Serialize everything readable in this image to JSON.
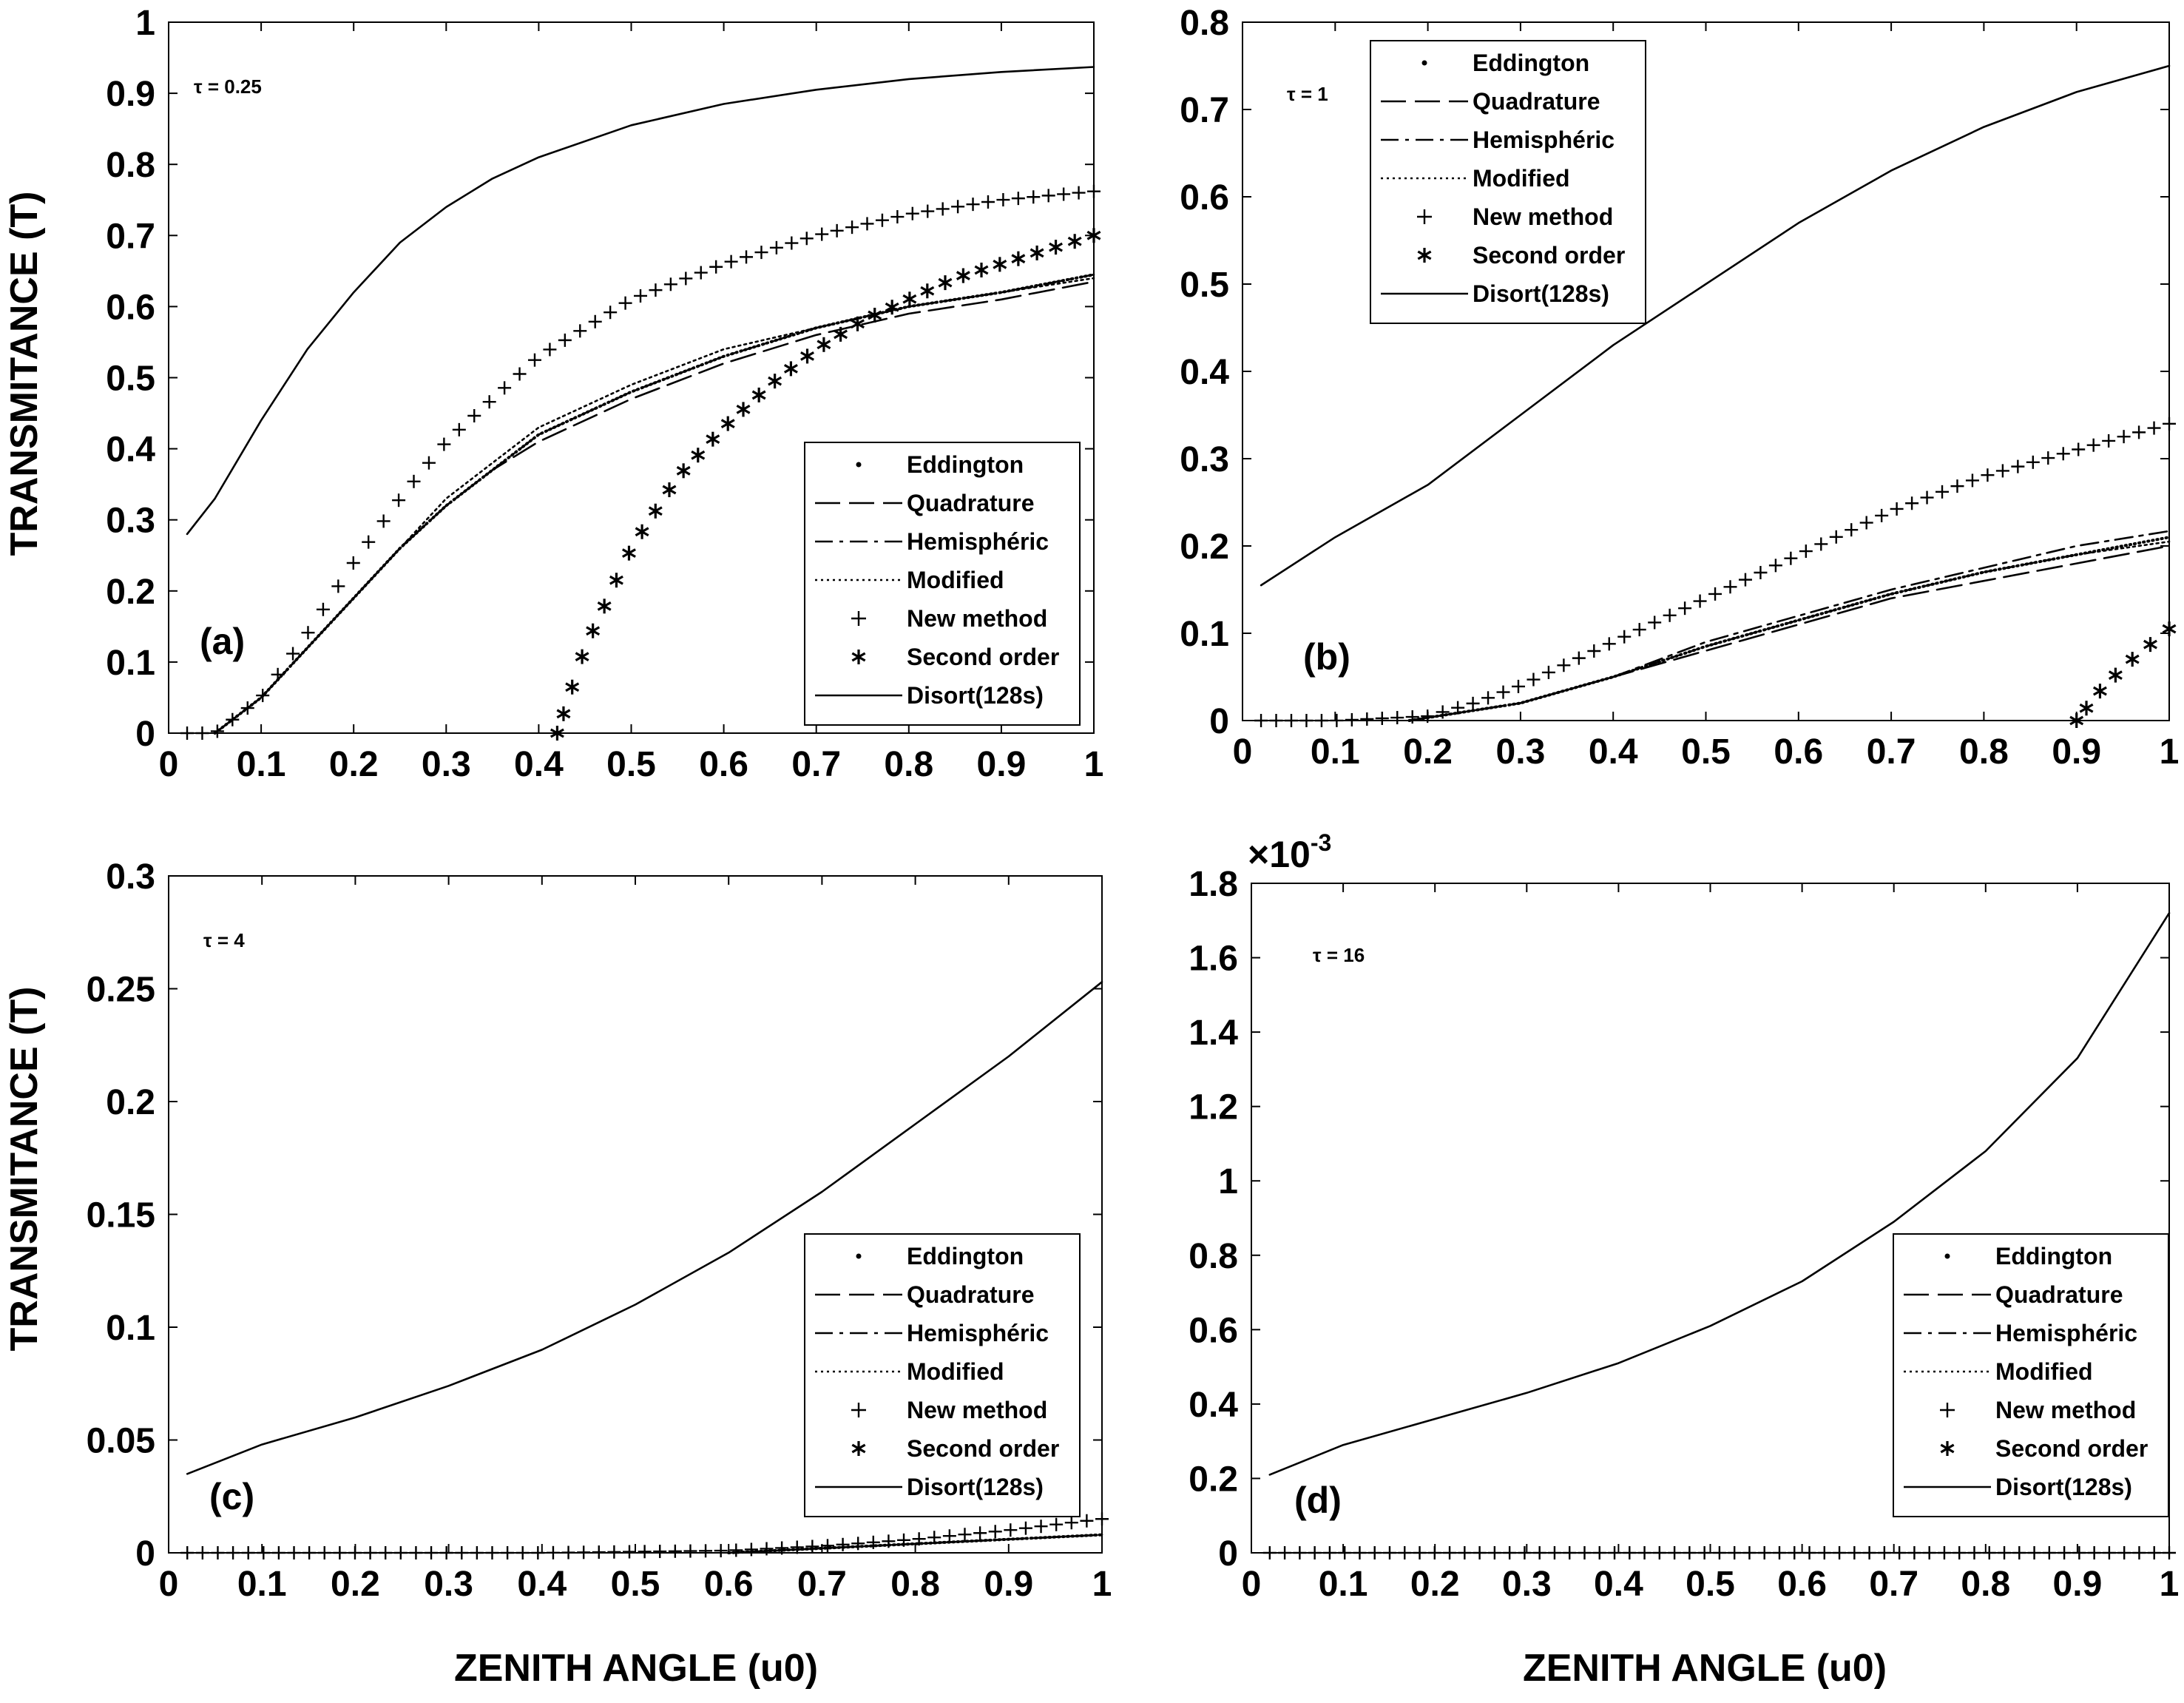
{
  "figure": {
    "xlabel": "ZENITH ANGLE (u0)",
    "ylabel": "TRANSMITANCE (T)"
  },
  "legend": {
    "entries": [
      {
        "label": "Eddington",
        "style": "dot"
      },
      {
        "label": "Quadrature",
        "style": "dashed"
      },
      {
        "label": "Hemisphéric",
        "style": "dashdot"
      },
      {
        "label": "Modified",
        "style": "dotted"
      },
      {
        "label": "New method",
        "style": "plus"
      },
      {
        "label": "Second order",
        "style": "star"
      },
      {
        "label": "Disort(128s)",
        "style": "solid"
      }
    ]
  },
  "chart_data": [
    {
      "type": "line",
      "panel": "(a)",
      "annotation": "τ = 0.25",
      "xlabel": "ZENITH ANGLE (u0)",
      "ylabel": "TRANSMITANCE (T)",
      "xlim": [
        0,
        1
      ],
      "ylim": [
        0,
        1
      ],
      "xticks": [
        "0",
        "0.1",
        "0.2",
        "0.3",
        "0.4",
        "0.5",
        "0.6",
        "0.7",
        "0.8",
        "0.9",
        "1"
      ],
      "yticks": [
        "0",
        "0.1",
        "0.2",
        "0.3",
        "0.4",
        "0.5",
        "0.6",
        "0.7",
        "0.8",
        "0.9",
        "1"
      ],
      "series": [
        {
          "name": "Disort(128s)",
          "x": [
            0.02,
            0.05,
            0.1,
            0.15,
            0.2,
            0.25,
            0.3,
            0.35,
            0.4,
            0.5,
            0.6,
            0.7,
            0.8,
            0.9,
            1.0
          ],
          "y": [
            0.28,
            0.33,
            0.44,
            0.54,
            0.62,
            0.69,
            0.74,
            0.78,
            0.81,
            0.855,
            0.885,
            0.905,
            0.92,
            0.93,
            0.937
          ]
        },
        {
          "name": "New method",
          "x": [
            0.02,
            0.05,
            0.1,
            0.15,
            0.2,
            0.25,
            0.3,
            0.35,
            0.4,
            0.5,
            0.6,
            0.7,
            0.8,
            0.9,
            1.0
          ],
          "y": [
            0.0,
            0.0,
            0.05,
            0.14,
            0.24,
            0.33,
            0.41,
            0.47,
            0.53,
            0.61,
            0.66,
            0.7,
            0.73,
            0.75,
            0.762
          ]
        },
        {
          "name": "Quadrature",
          "x": [
            0.05,
            0.1,
            0.15,
            0.2,
            0.25,
            0.3,
            0.35,
            0.4,
            0.5,
            0.6,
            0.7,
            0.8,
            0.9,
            1.0
          ],
          "y": [
            0.0,
            0.05,
            0.12,
            0.19,
            0.26,
            0.32,
            0.37,
            0.41,
            0.47,
            0.52,
            0.56,
            0.59,
            0.61,
            0.635
          ]
        },
        {
          "name": "Eddington",
          "x": [
            0.05,
            0.1,
            0.15,
            0.2,
            0.25,
            0.3,
            0.35,
            0.4,
            0.5,
            0.6,
            0.7,
            0.8,
            0.9,
            1.0
          ],
          "y": [
            0.0,
            0.05,
            0.12,
            0.19,
            0.26,
            0.32,
            0.37,
            0.42,
            0.48,
            0.53,
            0.57,
            0.6,
            0.62,
            0.645
          ]
        },
        {
          "name": "Hemisphéric",
          "x": [
            0.05,
            0.1,
            0.15,
            0.2,
            0.25,
            0.3,
            0.35,
            0.4,
            0.5,
            0.6,
            0.7,
            0.8,
            0.9,
            1.0
          ],
          "y": [
            0.0,
            0.05,
            0.12,
            0.19,
            0.26,
            0.32,
            0.37,
            0.42,
            0.48,
            0.53,
            0.57,
            0.6,
            0.62,
            0.645
          ]
        },
        {
          "name": "Modified",
          "x": [
            0.05,
            0.1,
            0.15,
            0.2,
            0.25,
            0.3,
            0.35,
            0.4,
            0.5,
            0.6,
            0.7,
            0.8,
            0.9,
            1.0
          ],
          "y": [
            0.0,
            0.05,
            0.12,
            0.19,
            0.26,
            0.33,
            0.38,
            0.43,
            0.49,
            0.54,
            0.57,
            0.6,
            0.62,
            0.64
          ]
        },
        {
          "name": "Second order",
          "x": [
            0.42,
            0.45,
            0.5,
            0.55,
            0.6,
            0.65,
            0.7,
            0.75,
            0.8,
            0.85,
            0.9,
            0.95,
            1.0
          ],
          "y": [
            0.0,
            0.12,
            0.26,
            0.36,
            0.43,
            0.49,
            0.54,
            0.58,
            0.61,
            0.64,
            0.66,
            0.68,
            0.7
          ]
        }
      ]
    },
    {
      "type": "line",
      "panel": "(b)",
      "annotation": "τ = 1",
      "xlabel": "ZENITH ANGLE (u0)",
      "ylabel": "",
      "xlim": [
        0,
        1
      ],
      "ylim": [
        0,
        0.8
      ],
      "xticks": [
        "0",
        "0.1",
        "0.2",
        "0.3",
        "0.4",
        "0.5",
        "0.6",
        "0.7",
        "0.8",
        "0.9",
        "1"
      ],
      "yticks": [
        "0",
        "0.1",
        "0.2",
        "0.3",
        "0.4",
        "0.5",
        "0.6",
        "0.7",
        "0.8"
      ],
      "series": [
        {
          "name": "Disort(128s)",
          "x": [
            0.02,
            0.1,
            0.2,
            0.3,
            0.4,
            0.5,
            0.6,
            0.7,
            0.8,
            0.9,
            1.0
          ],
          "y": [
            0.155,
            0.21,
            0.27,
            0.35,
            0.43,
            0.5,
            0.57,
            0.63,
            0.68,
            0.72,
            0.75
          ]
        },
        {
          "name": "New method",
          "x": [
            0.02,
            0.1,
            0.2,
            0.25,
            0.3,
            0.4,
            0.5,
            0.6,
            0.7,
            0.8,
            0.9,
            1.0
          ],
          "y": [
            0.0,
            0.0,
            0.005,
            0.02,
            0.04,
            0.09,
            0.14,
            0.19,
            0.24,
            0.28,
            0.31,
            0.34
          ]
        },
        {
          "name": "Quadrature",
          "x": [
            0.18,
            0.3,
            0.4,
            0.5,
            0.6,
            0.7,
            0.8,
            0.9,
            1.0
          ],
          "y": [
            0.0,
            0.02,
            0.05,
            0.08,
            0.11,
            0.14,
            0.16,
            0.18,
            0.2
          ]
        },
        {
          "name": "Eddington",
          "x": [
            0.18,
            0.3,
            0.4,
            0.5,
            0.6,
            0.7,
            0.8,
            0.9,
            1.0
          ],
          "y": [
            0.0,
            0.02,
            0.05,
            0.085,
            0.115,
            0.145,
            0.17,
            0.19,
            0.21
          ]
        },
        {
          "name": "Hemisphéric",
          "x": [
            0.18,
            0.3,
            0.4,
            0.5,
            0.6,
            0.7,
            0.8,
            0.9,
            1.0
          ],
          "y": [
            0.0,
            0.02,
            0.05,
            0.09,
            0.12,
            0.15,
            0.175,
            0.2,
            0.217
          ]
        },
        {
          "name": "Modified",
          "x": [
            0.18,
            0.3,
            0.4,
            0.5,
            0.6,
            0.7,
            0.8,
            0.9,
            1.0
          ],
          "y": [
            0.0,
            0.02,
            0.05,
            0.085,
            0.115,
            0.145,
            0.17,
            0.19,
            0.205
          ]
        },
        {
          "name": "Second order",
          "x": [
            0.9,
            0.93,
            0.96,
            1.0
          ],
          "y": [
            0.0,
            0.04,
            0.07,
            0.105
          ]
        }
      ]
    },
    {
      "type": "line",
      "panel": "(c)",
      "annotation": "τ = 4",
      "xlabel": "ZENITH ANGLE (u0)",
      "ylabel": "TRANSMITANCE (T)",
      "xlim": [
        0,
        1
      ],
      "ylim": [
        0,
        0.3
      ],
      "xticks": [
        "0",
        "0.1",
        "0.2",
        "0.3",
        "0.4",
        "0.5",
        "0.6",
        "0.7",
        "0.8",
        "0.9",
        "1"
      ],
      "yticks": [
        "0",
        "0.05",
        "0.1",
        "0.15",
        "0.2",
        "0.25",
        "0.3"
      ],
      "series": [
        {
          "name": "Disort(128s)",
          "x": [
            0.02,
            0.1,
            0.2,
            0.3,
            0.4,
            0.5,
            0.6,
            0.7,
            0.8,
            0.9,
            1.0
          ],
          "y": [
            0.035,
            0.048,
            0.06,
            0.074,
            0.09,
            0.11,
            0.133,
            0.16,
            0.19,
            0.22,
            0.253
          ]
        },
        {
          "name": "New method",
          "x": [
            0.02,
            0.2,
            0.4,
            0.6,
            0.7,
            0.8,
            0.9,
            1.0
          ],
          "y": [
            0.0,
            0.0,
            0.0,
            0.001,
            0.003,
            0.006,
            0.01,
            0.015
          ]
        },
        {
          "name": "Quadrature",
          "x": [
            0.6,
            0.7,
            0.8,
            0.9,
            1.0
          ],
          "y": [
            0.0,
            0.002,
            0.004,
            0.006,
            0.008
          ]
        },
        {
          "name": "Eddington",
          "x": [
            0.6,
            0.7,
            0.8,
            0.9,
            1.0
          ],
          "y": [
            0.0,
            0.002,
            0.004,
            0.006,
            0.008
          ]
        },
        {
          "name": "Hemisphéric",
          "x": [
            0.6,
            0.7,
            0.8,
            0.9,
            1.0
          ],
          "y": [
            0.0,
            0.002,
            0.004,
            0.006,
            0.008
          ]
        },
        {
          "name": "Modified",
          "x": [
            0.6,
            0.7,
            0.8,
            0.9,
            1.0
          ],
          "y": [
            0.0,
            0.002,
            0.004,
            0.006,
            0.008
          ]
        }
      ]
    },
    {
      "type": "line",
      "panel": "(d)",
      "annotation": "τ = 16",
      "xlabel": "ZENITH ANGLE (u0)",
      "ylabel": "",
      "y_multiplier": "×10",
      "y_exponent": "-3",
      "xlim": [
        0,
        1
      ],
      "ylim": [
        0,
        1.8
      ],
      "xticks": [
        "0",
        "0.1",
        "0.2",
        "0.3",
        "0.4",
        "0.5",
        "0.6",
        "0.7",
        "0.8",
        "0.9",
        "1"
      ],
      "yticks": [
        "0",
        "0.2",
        "0.4",
        "0.6",
        "0.8",
        "1",
        "1.2",
        "1.4",
        "1.6",
        "1.8"
      ],
      "series": [
        {
          "name": "Disort(128s)",
          "x": [
            0.02,
            0.1,
            0.2,
            0.3,
            0.4,
            0.5,
            0.6,
            0.7,
            0.8,
            0.9,
            1.0
          ],
          "y": [
            0.21,
            0.29,
            0.36,
            0.43,
            0.51,
            0.61,
            0.73,
            0.89,
            1.08,
            1.33,
            1.72
          ]
        },
        {
          "name": "New method",
          "x": [
            0.02,
            0.2,
            0.4,
            0.6,
            0.8,
            1.0
          ],
          "y": [
            0.0,
            0.0,
            0.0,
            0.0,
            0.0,
            0.0
          ]
        }
      ]
    }
  ]
}
